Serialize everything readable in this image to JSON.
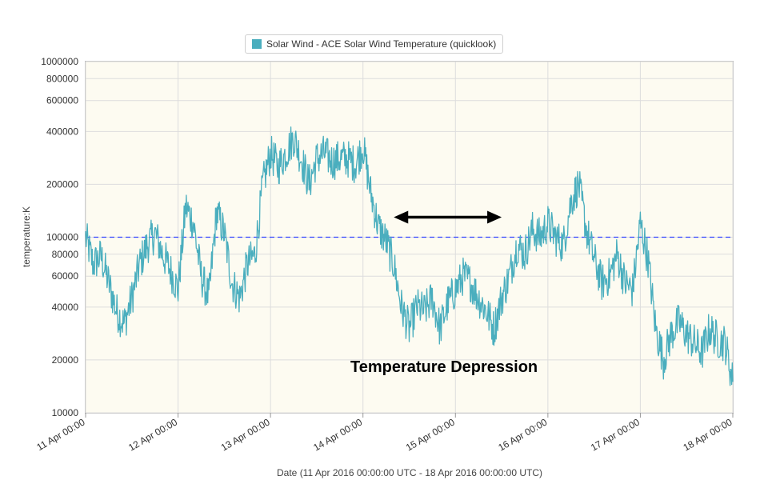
{
  "chart_data": {
    "type": "line",
    "legend": {
      "label": "Solar Wind - ACE Solar Wind Temperature (quicklook)",
      "color": "#4aaebe",
      "placement": "top-center"
    },
    "ylabel": "temperature:K",
    "xlabel": "Date (11 Apr 2016 00:00:00 UTC - 18 Apr 2016 00:00:00 UTC)",
    "y_scale": "log",
    "ylim": [
      10000,
      1000000
    ],
    "xlim": [
      "2016-04-11T00:00",
      "2016-04-18T00:00"
    ],
    "y_ticks": [
      {
        "value": 10000,
        "label": "10000"
      },
      {
        "value": 20000,
        "label": "20000"
      },
      {
        "value": 40000,
        "label": "40000"
      },
      {
        "value": 60000,
        "label": "60000"
      },
      {
        "value": 80000,
        "label": "80000"
      },
      {
        "value": 100000,
        "label": "100000"
      },
      {
        "value": 200000,
        "label": "200000"
      },
      {
        "value": 400000,
        "label": "400000"
      },
      {
        "value": 600000,
        "label": "600000"
      },
      {
        "value": 800000,
        "label": "800000"
      },
      {
        "value": 1000000,
        "label": "1000000"
      }
    ],
    "x_ticks": [
      {
        "value": "2016-04-11T00:00",
        "label": "11 Apr 00:00"
      },
      {
        "value": "2016-04-12T00:00",
        "label": "12 Apr 00:00"
      },
      {
        "value": "2016-04-13T00:00",
        "label": "13 Apr 00:00"
      },
      {
        "value": "2016-04-14T00:00",
        "label": "14 Apr 00:00"
      },
      {
        "value": "2016-04-15T00:00",
        "label": "15 Apr 00:00"
      },
      {
        "value": "2016-04-16T00:00",
        "label": "16 Apr 00:00"
      },
      {
        "value": "2016-04-17T00:00",
        "label": "17 Apr 00:00"
      },
      {
        "value": "2016-04-18T00:00",
        "label": "18 Apr 00:00"
      }
    ],
    "grid": true,
    "reference_line": {
      "value": 100000,
      "color": "#3344ff",
      "style": "dashed"
    },
    "annotation": {
      "text": "Temperature Depression",
      "arrow_from": "2016-04-14T08:00",
      "arrow_to": "2016-04-15T12:00",
      "arrow_value": 130000
    },
    "series": [
      {
        "color": "#4aaebe",
        "points": [
          [
            "2016-04-11T00:00",
            100000
          ],
          [
            "2016-04-11T02:00",
            70000
          ],
          [
            "2016-04-11T04:00",
            78000
          ],
          [
            "2016-04-11T06:00",
            55000
          ],
          [
            "2016-04-11T08:00",
            38000
          ],
          [
            "2016-04-11T10:00",
            32000
          ],
          [
            "2016-04-11T12:00",
            45000
          ],
          [
            "2016-04-11T14:00",
            70000
          ],
          [
            "2016-04-11T16:00",
            90000
          ],
          [
            "2016-04-11T18:00",
            105000
          ],
          [
            "2016-04-11T20:00",
            80000
          ],
          [
            "2016-04-11T22:00",
            65000
          ],
          [
            "2016-04-12T00:00",
            50000
          ],
          [
            "2016-04-12T02:00",
            150000
          ],
          [
            "2016-04-12T04:00",
            120000
          ],
          [
            "2016-04-12T06:00",
            60000
          ],
          [
            "2016-04-12T08:00",
            45000
          ],
          [
            "2016-04-12T10:00",
            140000
          ],
          [
            "2016-04-12T12:00",
            105000
          ],
          [
            "2016-04-12T14:00",
            55000
          ],
          [
            "2016-04-12T16:00",
            45000
          ],
          [
            "2016-04-12T18:00",
            70000
          ],
          [
            "2016-04-12T20:00",
            80000
          ],
          [
            "2016-04-12T22:00",
            200000
          ],
          [
            "2016-04-13T00:00",
            300000
          ],
          [
            "2016-04-13T02:00",
            250000
          ],
          [
            "2016-04-13T04:00",
            300000
          ],
          [
            "2016-04-13T06:00",
            370000
          ],
          [
            "2016-04-13T08:00",
            280000
          ],
          [
            "2016-04-13T10:00",
            200000
          ],
          [
            "2016-04-13T12:00",
            280000
          ],
          [
            "2016-04-13T14:00",
            300000
          ],
          [
            "2016-04-13T16:00",
            270000
          ],
          [
            "2016-04-13T18:00",
            280000
          ],
          [
            "2016-04-13T20:00",
            280000
          ],
          [
            "2016-04-13T22:00",
            260000
          ],
          [
            "2016-04-14T00:00",
            330000
          ],
          [
            "2016-04-14T02:00",
            180000
          ],
          [
            "2016-04-14T04:00",
            115000
          ],
          [
            "2016-04-14T06:00",
            95000
          ],
          [
            "2016-04-14T08:00",
            70000
          ],
          [
            "2016-04-14T10:00",
            40000
          ],
          [
            "2016-04-14T12:00",
            30000
          ],
          [
            "2016-04-14T14:00",
            40000
          ],
          [
            "2016-04-14T16:00",
            38000
          ],
          [
            "2016-04-14T18:00",
            45000
          ],
          [
            "2016-04-14T20:00",
            30000
          ],
          [
            "2016-04-14T22:00",
            42000
          ],
          [
            "2016-04-15T00:00",
            50000
          ],
          [
            "2016-04-15T02:00",
            60000
          ],
          [
            "2016-04-15T04:00",
            55000
          ],
          [
            "2016-04-15T06:00",
            45000
          ],
          [
            "2016-04-15T08:00",
            38000
          ],
          [
            "2016-04-15T10:00",
            30000
          ],
          [
            "2016-04-15T12:00",
            45000
          ],
          [
            "2016-04-15T14:00",
            60000
          ],
          [
            "2016-04-15T16:00",
            90000
          ],
          [
            "2016-04-15T18:00",
            80000
          ],
          [
            "2016-04-15T20:00",
            110000
          ],
          [
            "2016-04-15T22:00",
            100000
          ],
          [
            "2016-04-16T00:00",
            120000
          ],
          [
            "2016-04-16T02:00",
            100000
          ],
          [
            "2016-04-16T04:00",
            90000
          ],
          [
            "2016-04-16T06:00",
            160000
          ],
          [
            "2016-04-16T08:00",
            200000
          ],
          [
            "2016-04-16T10:00",
            110000
          ],
          [
            "2016-04-16T12:00",
            75000
          ],
          [
            "2016-04-16T14:00",
            55000
          ],
          [
            "2016-04-16T16:00",
            60000
          ],
          [
            "2016-04-16T18:00",
            80000
          ],
          [
            "2016-04-16T20:00",
            55000
          ],
          [
            "2016-04-16T22:00",
            50000
          ],
          [
            "2016-04-17T00:00",
            120000
          ],
          [
            "2016-04-17T02:00",
            75000
          ],
          [
            "2016-04-17T04:00",
            30000
          ],
          [
            "2016-04-17T06:00",
            20000
          ],
          [
            "2016-04-17T08:00",
            28000
          ],
          [
            "2016-04-17T10:00",
            33000
          ],
          [
            "2016-04-17T12:00",
            28000
          ],
          [
            "2016-04-17T14:00",
            25000
          ],
          [
            "2016-04-17T16:00",
            22000
          ],
          [
            "2016-04-17T18:00",
            30000
          ],
          [
            "2016-04-17T20:00",
            26000
          ],
          [
            "2016-04-17T22:00",
            25000
          ],
          [
            "2016-04-18T00:00",
            15000
          ]
        ]
      }
    ]
  }
}
